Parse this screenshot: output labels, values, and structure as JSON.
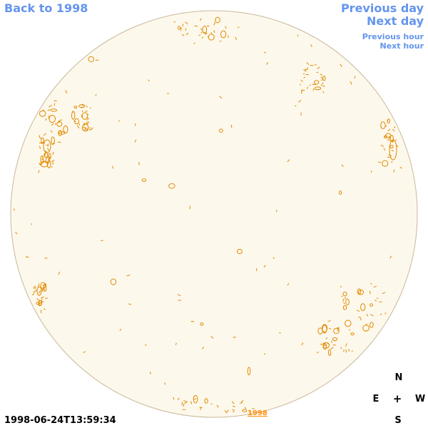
{
  "nav": {
    "back": "Back to 1998",
    "previous_day": "Previous day",
    "next_day": "Next day",
    "previous_hour": "Previous hour",
    "next_hour": "Next hour"
  },
  "compass": {
    "north": "N",
    "south": "S",
    "east": "E",
    "west": "W",
    "center": "+"
  },
  "timestamp": "1998-06-24T13:59:34",
  "year_link": "1998",
  "colors": {
    "disk_fill": "#fdf8ec",
    "disk_edge": "#c8b89a",
    "contour": "#e08a00",
    "link": "#6495ed"
  }
}
